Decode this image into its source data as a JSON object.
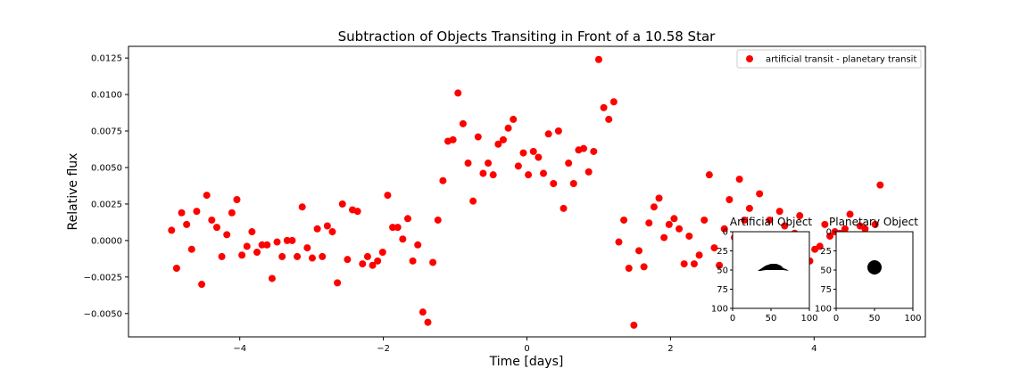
{
  "chart_data": {
    "type": "scatter",
    "title": "Subtraction of Objects Transiting in Front of a 10.58 Star",
    "xlabel": "Time [days]",
    "ylabel": "Relative flux",
    "xlim": [
      -5.55,
      5.55
    ],
    "ylim": [
      -0.0066,
      0.0133
    ],
    "x_ticks": [
      -4,
      -2,
      0,
      2,
      4
    ],
    "x_tick_labels": [
      "−4",
      "−2",
      "0",
      "2",
      "4"
    ],
    "y_ticks": [
      -0.005,
      -0.0025,
      0.0,
      0.0025,
      0.005,
      0.0075,
      0.01,
      0.0125
    ],
    "y_tick_labels": [
      "−0.0050",
      "−0.0025",
      "0.0000",
      "0.0025",
      "0.0050",
      "0.0075",
      "0.0100",
      "0.0125"
    ],
    "grid": false,
    "legend_position": "top-right",
    "marker_color": "#ff0000",
    "series": [
      {
        "name": "artificial transit - planetary transit",
        "x": [
          -4.95,
          -4.88,
          -4.81,
          -4.74,
          -4.67,
          -4.6,
          -4.53,
          -4.46,
          -4.39,
          -4.32,
          -4.25,
          -4.18,
          -4.11,
          -4.04,
          -3.97,
          -3.9,
          -3.83,
          -3.76,
          -3.69,
          -3.62,
          -3.55,
          -3.48,
          -3.41,
          -3.34,
          -3.27,
          -3.2,
          -3.13,
          -3.06,
          -2.99,
          -2.92,
          -2.85,
          -2.78,
          -2.71,
          -2.64,
          -2.57,
          -2.5,
          -2.43,
          -2.36,
          -2.29,
          -2.22,
          -2.15,
          -2.08,
          -2.01,
          -1.94,
          -1.87,
          -1.8,
          -1.73,
          -1.66,
          -1.59,
          -1.52,
          -1.45,
          -1.38,
          -1.31,
          -1.24,
          -1.17,
          -1.1,
          -1.03,
          -0.96,
          -0.89,
          -0.82,
          -0.75,
          -0.68,
          -0.61,
          -0.54,
          -0.47,
          -0.4,
          -0.33,
          -0.26,
          -0.19,
          -0.12,
          -0.05,
          0.02,
          0.09,
          0.16,
          0.23,
          0.3,
          0.37,
          0.44,
          0.51,
          0.58,
          0.65,
          0.72,
          0.79,
          0.86,
          0.93,
          1.0,
          1.07,
          1.14,
          1.21,
          1.28,
          1.35,
          1.42,
          1.49,
          1.56,
          1.63,
          1.7,
          1.77,
          1.84,
          1.91,
          1.98,
          2.05,
          2.12,
          2.19,
          2.26,
          2.33,
          2.4,
          2.47,
          2.54,
          2.61,
          2.68,
          2.75,
          2.82,
          2.89,
          2.96,
          3.03,
          3.1,
          3.17,
          3.24,
          3.31,
          3.38,
          3.45,
          3.52,
          3.59,
          3.66,
          3.73,
          3.8,
          3.87,
          3.94,
          4.01,
          4.08,
          4.15,
          4.22,
          4.29,
          4.36,
          4.43,
          4.5,
          4.57,
          4.64,
          4.71,
          4.78,
          4.85,
          4.92
        ],
        "y": [
          0.0007,
          -0.0019,
          0.0019,
          0.0011,
          -0.0006,
          0.002,
          -0.003,
          0.0031,
          0.0014,
          0.0009,
          -0.0011,
          0.0004,
          0.0019,
          0.0028,
          -0.001,
          -0.0004,
          0.0006,
          -0.0008,
          -0.0003,
          -0.0003,
          -0.0026,
          -0.0001,
          -0.0011,
          0.0,
          0.0,
          -0.0011,
          0.0023,
          -0.0005,
          -0.0012,
          0.0008,
          -0.0011,
          0.001,
          0.0006,
          -0.0029,
          0.0025,
          -0.0013,
          0.0021,
          0.002,
          -0.0016,
          -0.0011,
          -0.0017,
          -0.0014,
          -0.0008,
          0.0031,
          0.0009,
          0.0009,
          0.0001,
          0.0015,
          -0.0014,
          -0.0003,
          -0.0049,
          -0.0056,
          -0.0015,
          0.0014,
          0.0041,
          0.0068,
          0.0069,
          0.0101,
          0.008,
          0.0053,
          0.0027,
          0.0071,
          0.0046,
          0.0053,
          0.0045,
          0.0066,
          0.0069,
          0.0077,
          0.0083,
          0.0051,
          0.006,
          0.0045,
          0.0061,
          0.0057,
          0.0046,
          0.0073,
          0.0039,
          0.0075,
          0.0022,
          0.0053,
          0.0039,
          0.0062,
          0.0063,
          0.0047,
          0.0061,
          0.0124,
          0.0091,
          0.0083,
          0.0095,
          -0.0001,
          0.0014,
          -0.0019,
          -0.0058,
          -0.0007,
          -0.0018,
          0.0012,
          0.0023,
          0.0029,
          0.0002,
          0.0011,
          0.0015,
          0.0008,
          -0.0016,
          0.0003,
          -0.0016,
          -0.001,
          0.0014,
          0.0045,
          -0.0005,
          -0.0017,
          0.0008,
          0.0028,
          0.0002,
          0.0042,
          0.0014,
          0.0022,
          -0.0011,
          0.0032,
          0.0003,
          0.0014,
          0.0001,
          0.002,
          0.001,
          -0.0012,
          0.0005,
          0.0017,
          0.0004,
          -0.0014,
          -0.0006,
          -0.0004,
          0.0011,
          0.0003,
          0.0006,
          0.0005,
          0.0008,
          0.0018,
          0.0004,
          0.001,
          0.0008,
          0.0003,
          0.0011,
          0.0038
        ]
      }
    ],
    "insets": [
      {
        "title": "Artificial Object",
        "xlim": [
          0,
          100
        ],
        "ylim": [
          100,
          0
        ],
        "x_ticks": [
          0,
          50,
          100
        ],
        "y_ticks": [
          0,
          25,
          50,
          75,
          100
        ],
        "x_tick_labels": [
          "0",
          "50",
          "100"
        ],
        "y_tick_labels": [
          "0",
          "25",
          "50",
          "75",
          "100"
        ],
        "shape": "dome",
        "shape_color": "#000000"
      },
      {
        "title": "Planetary Object",
        "xlim": [
          0,
          100
        ],
        "ylim": [
          100,
          0
        ],
        "x_ticks": [
          0,
          50,
          100
        ],
        "y_ticks": [
          0,
          25,
          50,
          75,
          100
        ],
        "x_tick_labels": [
          "0",
          "50",
          "100"
        ],
        "y_tick_labels": [
          "0",
          "25",
          "50",
          "75",
          "100"
        ],
        "shape": "disk",
        "shape_color": "#000000"
      }
    ]
  }
}
